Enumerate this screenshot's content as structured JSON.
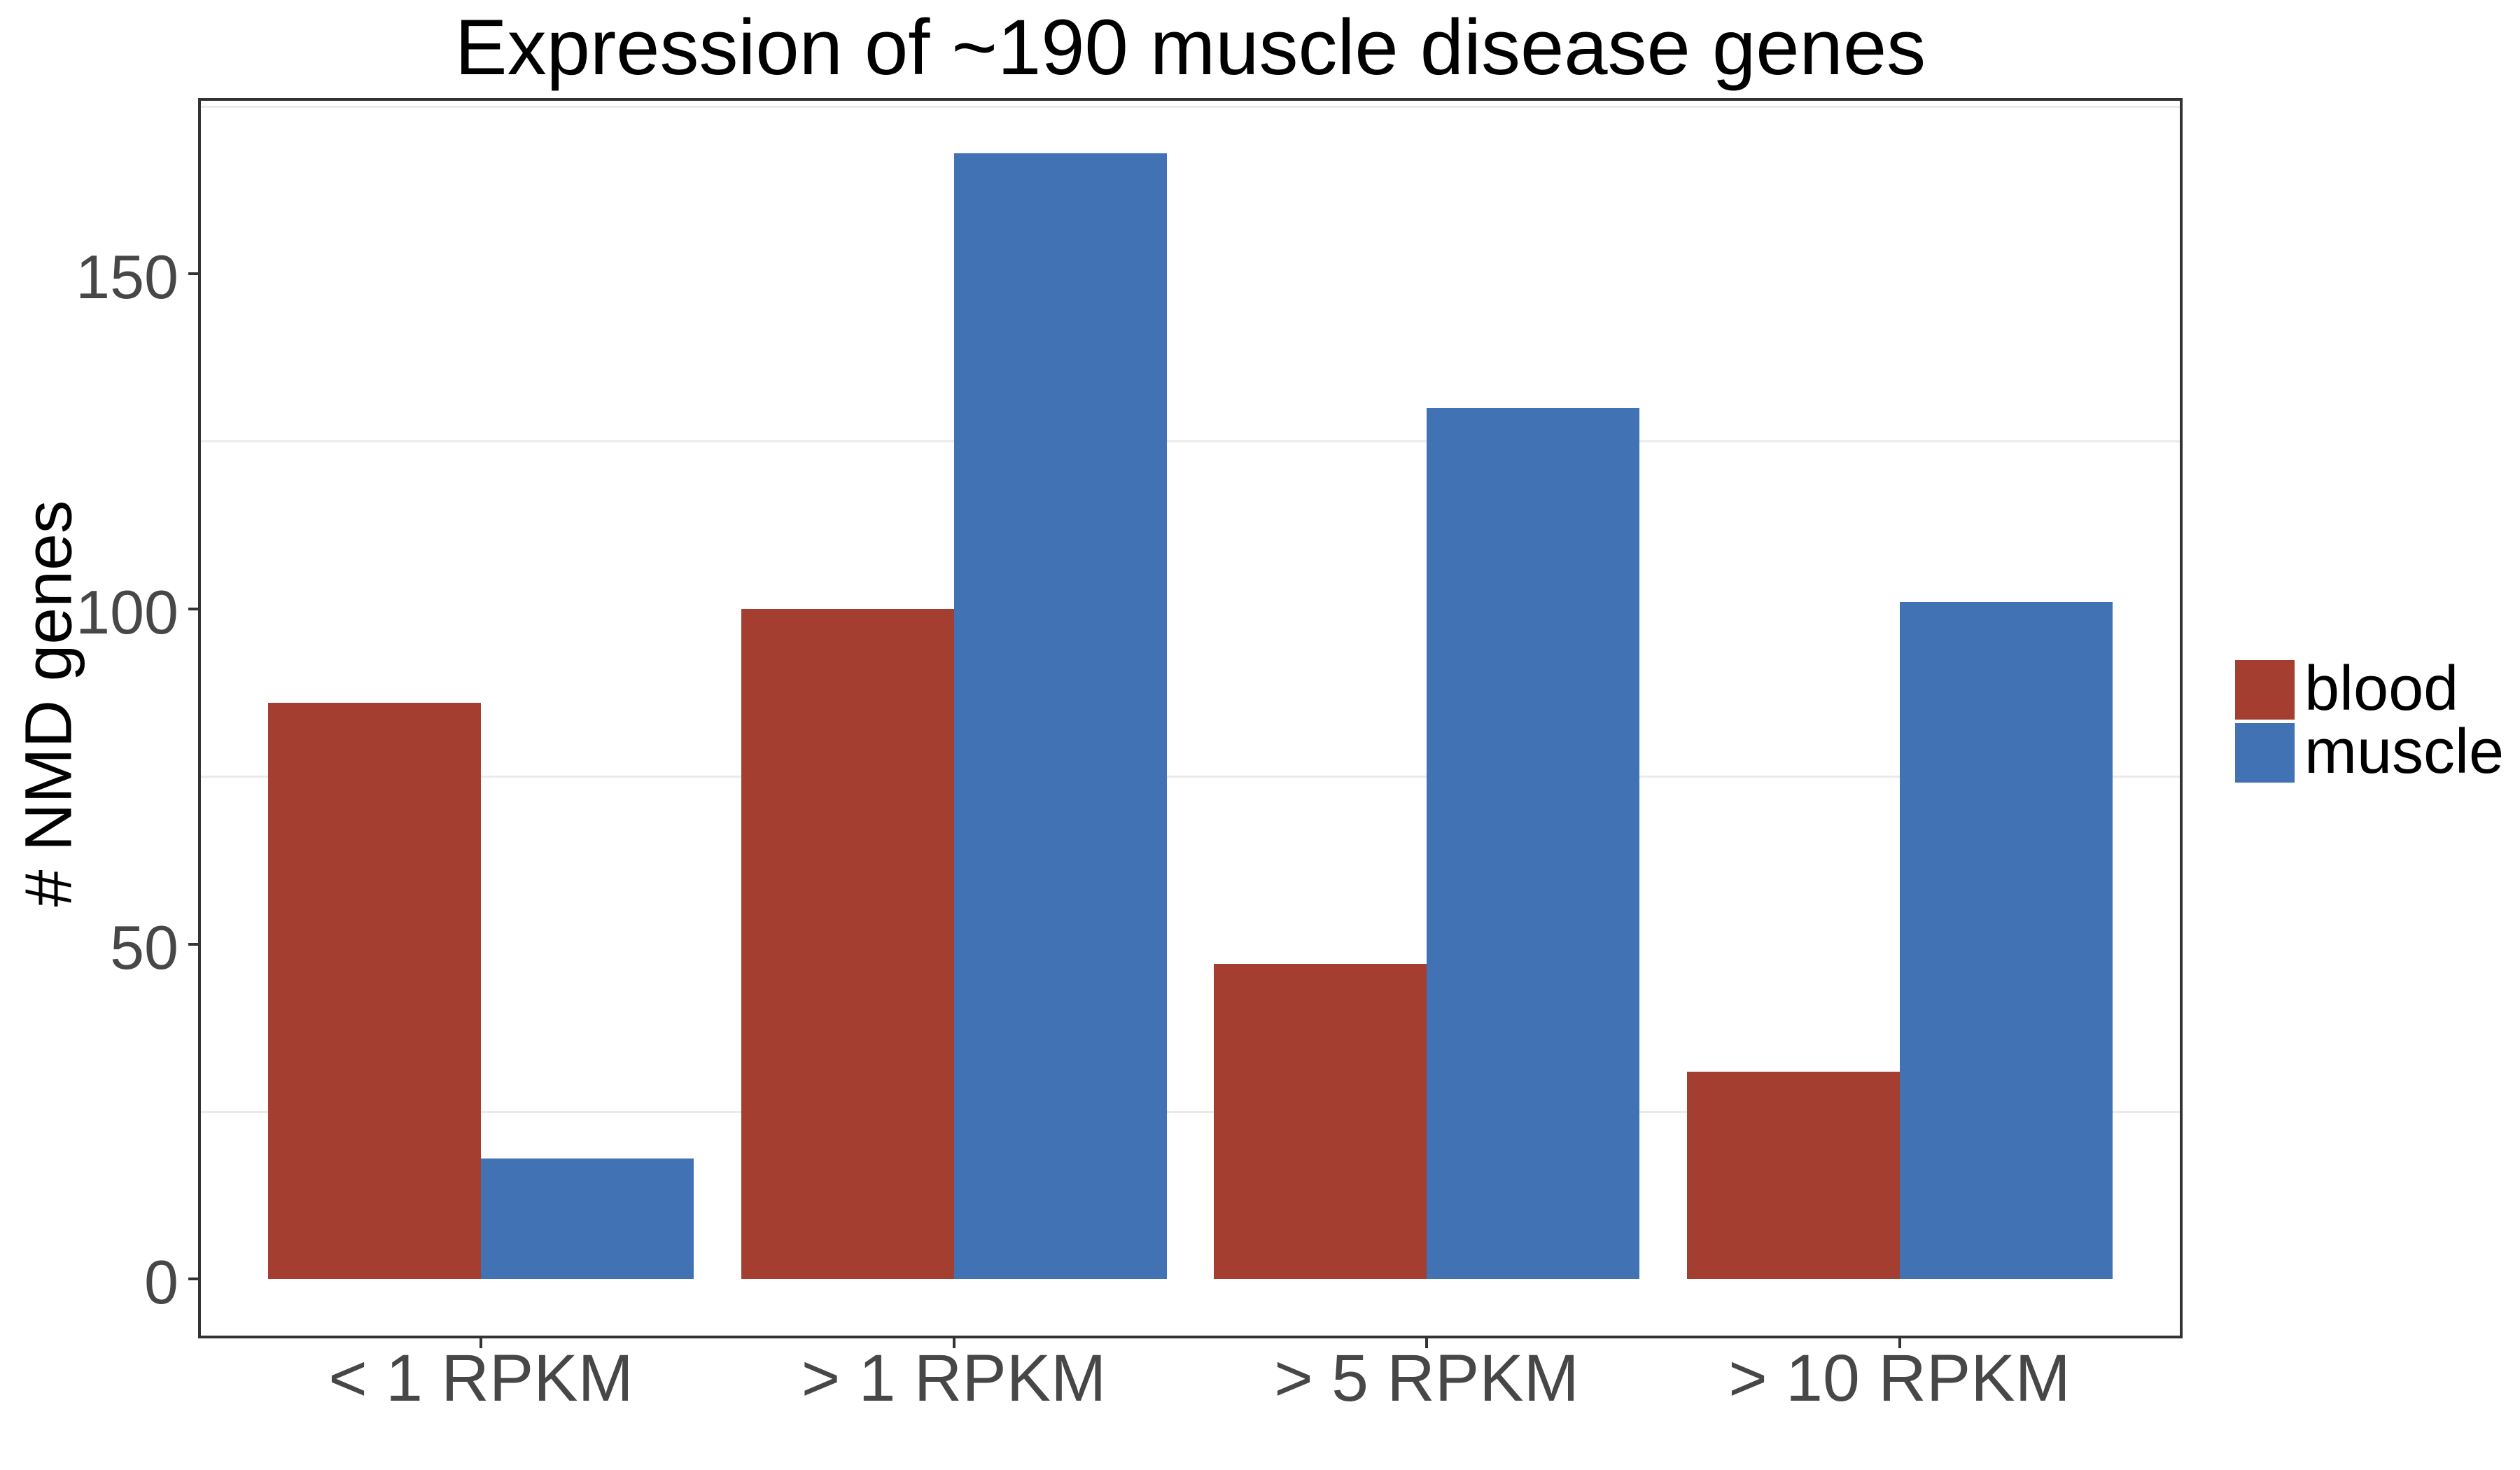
{
  "chart_data": {
    "type": "bar",
    "title": "Expression of ~190 muscle disease genes",
    "xlabel": "",
    "ylabel": "# NMD genes",
    "categories": [
      "< 1 RPKM",
      "> 1 RPKM",
      "> 5 RPKM",
      "> 10 RPKM"
    ],
    "series": [
      {
        "name": "blood",
        "color": "#A43E30",
        "values": [
          86,
          100,
          47,
          31
        ]
      },
      {
        "name": "muscle",
        "color": "#4173B4",
        "values": [
          18,
          168,
          130,
          101
        ]
      }
    ],
    "ylim": [
      0,
      175
    ],
    "yticks": [
      0,
      50,
      100,
      150
    ],
    "minor_gridlines": [
      25,
      75,
      125,
      175
    ],
    "grid": "minor-only",
    "legend_position": "right-middle",
    "bar_layout": "dodged",
    "colors": {
      "axis_text": "#474747",
      "axis_line": "#333333",
      "gridline": "#EBEBEB",
      "title_text": "#000000",
      "legend_text": "#000000",
      "background": "#FFFFFF"
    }
  }
}
